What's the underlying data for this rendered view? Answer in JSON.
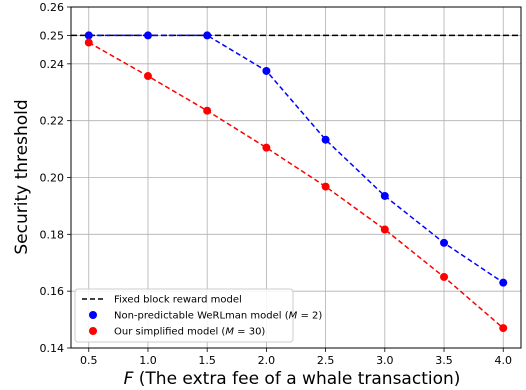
{
  "chart_data": {
    "type": "line",
    "xlabel": "F (The extra fee of a whale transaction)",
    "xlabel_italic_part": "F",
    "xlabel_rest": " (The extra fee of a whale transaction)",
    "ylabel": "Security threshold",
    "xlim": [
      0.35,
      4.15
    ],
    "ylim": [
      0.14,
      0.26
    ],
    "x_ticks": [
      0.5,
      1.0,
      1.5,
      2.0,
      2.5,
      3.0,
      3.5,
      4.0
    ],
    "x_tick_labels": [
      "0.5",
      "1.0",
      "1.5",
      "2.0",
      "2.5",
      "3.0",
      "3.5",
      "4.0"
    ],
    "y_ticks": [
      0.14,
      0.16,
      0.18,
      0.2,
      0.22,
      0.24,
      0.25,
      0.26
    ],
    "y_tick_labels": [
      "0.14",
      "0.16",
      "0.18",
      "0.20",
      "0.22",
      "0.24",
      "0.25",
      "0.26"
    ],
    "grid": true,
    "legend_position": "lower-left",
    "x": [
      0.5,
      1.0,
      1.5,
      2.0,
      2.5,
      3.0,
      3.5,
      4.0
    ],
    "series": [
      {
        "name": "Fixed block reward model",
        "kind": "hline",
        "y": 0.25,
        "color": "#000000",
        "dashed": true
      },
      {
        "name": "Non-predictable WeRLman model (M = 2)",
        "name_prefix": "Non-predictable WeRLman model (",
        "name_math": "M",
        "name_suffix": " = 2)",
        "color": "#0000ff",
        "dashed": true,
        "values": [
          0.25,
          0.25,
          0.25,
          0.2375,
          0.2133,
          0.1935,
          0.177,
          0.163
        ]
      },
      {
        "name": "Our simplified model (M = 30)",
        "name_prefix": "Our simplified model (",
        "name_math": "M",
        "name_suffix": " = 30)",
        "color": "#ff0000",
        "dashed": true,
        "values": [
          0.2475,
          0.2357,
          0.2235,
          0.2105,
          0.1968,
          0.1817,
          0.165,
          0.147
        ]
      }
    ]
  }
}
